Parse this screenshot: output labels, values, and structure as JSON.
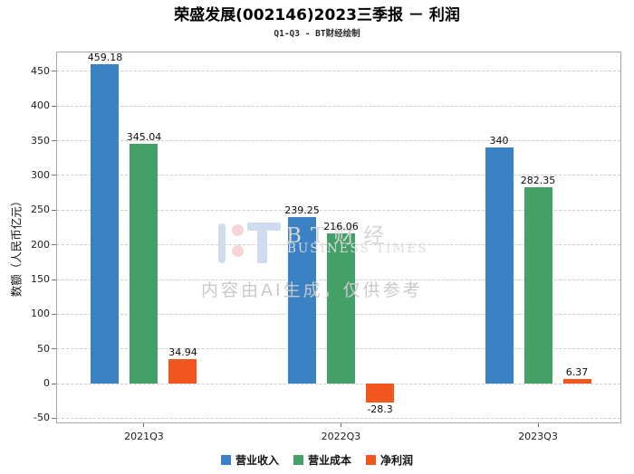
{
  "watermark": {
    "brand_cn": "BT财经",
    "brand_en": "BUSINESS TIMES",
    "notice": "内容由AI生成，仅供参考"
  },
  "chart_data": {
    "type": "bar",
    "title": "荣盛发展(002146)2023三季报 － 利润",
    "subtitle": "Q1-Q3 - BT财经绘制",
    "ylabel": "数额（人民币亿元）",
    "xlabel": "",
    "categories": [
      "2021Q3",
      "2022Q3",
      "2023Q3"
    ],
    "series": [
      {
        "name": "营业收入",
        "color": "#3a82c4",
        "values": [
          459.18,
          239.25,
          340
        ]
      },
      {
        "name": "营业成本",
        "color": "#43a066",
        "values": [
          345.04,
          216.06,
          282.35
        ]
      },
      {
        "name": "净利润",
        "color": "#f0561d",
        "values": [
          34.94,
          -28.3,
          6.37
        ]
      }
    ],
    "yticks": [
      -50,
      0,
      50,
      100,
      150,
      200,
      250,
      300,
      350,
      400,
      450
    ],
    "ylim": [
      -58,
      478
    ],
    "grid": "horizontal-dashed",
    "bar_value_labels": true,
    "legend_position": "bottom"
  }
}
